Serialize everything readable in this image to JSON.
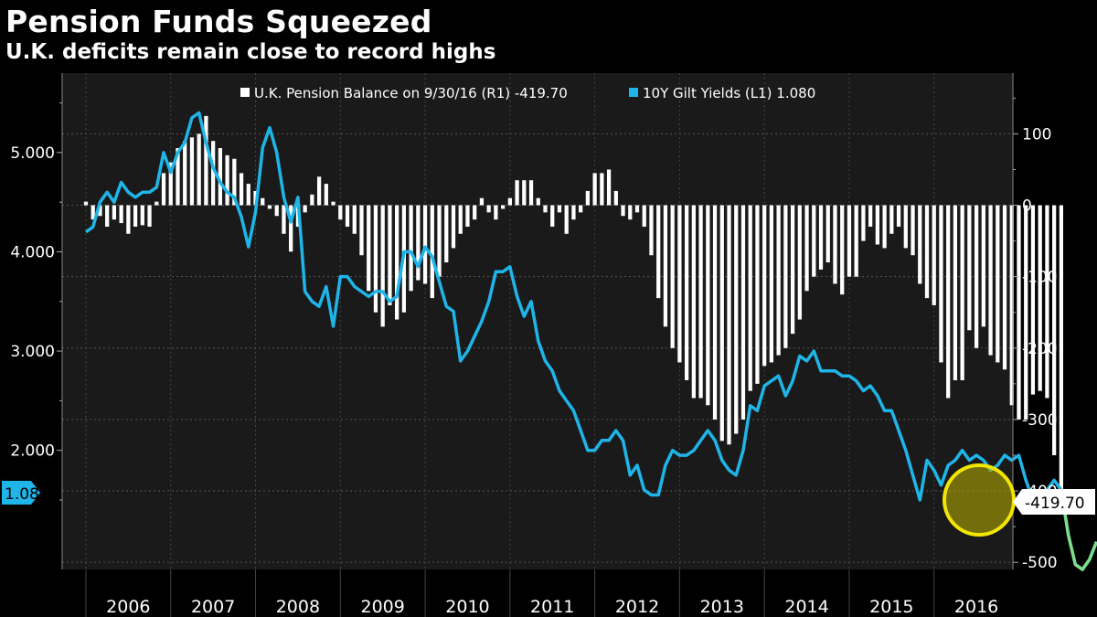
{
  "header": {
    "title": "Pension Funds Squeezed",
    "subtitle": "U.K. deficits remain close to record highs"
  },
  "colors": {
    "background": "#000000",
    "plot_background": "#1a1a1a",
    "bars": "#ffffff",
    "line": "#1fb5e8",
    "highlight": "#f2e600"
  },
  "chart_data": {
    "type": "bar+line",
    "x_tick_labels": [
      "2006",
      "2007",
      "2008",
      "2009",
      "2010",
      "2011",
      "2012",
      "2013",
      "2014",
      "2015",
      "2016"
    ],
    "left_axis": {
      "ylim": [
        0.8,
        5.8
      ],
      "ticks": [
        2.0,
        3.0,
        4.0,
        5.0
      ],
      "tick_labels": [
        "2.000",
        "3.000",
        "4.000",
        "5.000"
      ]
    },
    "right_axis": {
      "ylim": [
        -510,
        185
      ],
      "ticks": [
        100,
        0,
        -100,
        -200,
        -300,
        -400,
        -500
      ],
      "tick_labels": [
        "100",
        "0",
        "-100",
        "-200",
        "-300",
        "-400",
        "-500"
      ]
    },
    "series": [
      {
        "name": "U.K. Pension Balance on 9/30/16 (R1) -419.70",
        "axis": "right",
        "kind": "bar",
        "x_start": 2006.0,
        "step": 0.0833333,
        "values": [
          5,
          -20,
          -15,
          -30,
          -20,
          -25,
          -40,
          -30,
          -28,
          -30,
          5,
          45,
          60,
          80,
          90,
          95,
          100,
          125,
          90,
          80,
          70,
          65,
          45,
          30,
          20,
          10,
          -5,
          -15,
          -40,
          -65,
          -30,
          -10,
          15,
          40,
          30,
          5,
          -20,
          -30,
          -40,
          -70,
          -120,
          -150,
          -170,
          -140,
          -160,
          -150,
          -120,
          -105,
          -110,
          -130,
          -100,
          -80,
          -60,
          -40,
          -30,
          -20,
          10,
          -10,
          -20,
          -5,
          10,
          35,
          35,
          35,
          10,
          -10,
          -30,
          -10,
          -40,
          -20,
          -10,
          20,
          45,
          45,
          50,
          20,
          -15,
          -20,
          -10,
          -30,
          -70,
          -130,
          -170,
          -200,
          -220,
          -245,
          -270,
          -270,
          -280,
          -300,
          -330,
          -335,
          -320,
          -300,
          -260,
          -250,
          -225,
          -220,
          -210,
          -200,
          -180,
          -160,
          -120,
          -100,
          -90,
          -80,
          -110,
          -125,
          -100,
          -100,
          -50,
          -30,
          -55,
          -60,
          -40,
          -30,
          -60,
          -70,
          -110,
          -130,
          -140,
          -220,
          -270,
          -245,
          -245,
          -175,
          -200,
          -170,
          -210,
          -220,
          -230,
          -280,
          -300,
          -300,
          -265,
          -260,
          -270,
          -350,
          -420
        ]
      },
      {
        "name": "10Y Gilt Yields (L1) 1.080",
        "axis": "left",
        "kind": "line",
        "x_start": 2006.0,
        "step": 0.0833333,
        "values": [
          4.2,
          4.25,
          4.5,
          4.6,
          4.5,
          4.7,
          4.6,
          4.55,
          4.6,
          4.6,
          4.65,
          5.0,
          4.8,
          5.0,
          5.1,
          5.35,
          5.4,
          5.1,
          4.85,
          4.7,
          4.6,
          4.55,
          4.35,
          4.05,
          4.4,
          5.05,
          5.25,
          5.0,
          4.55,
          4.3,
          4.55,
          3.6,
          3.5,
          3.45,
          3.65,
          3.25,
          3.75,
          3.75,
          3.65,
          3.6,
          3.55,
          3.6,
          3.6,
          3.5,
          3.55,
          4.0,
          4.0,
          3.85,
          4.05,
          3.95,
          3.7,
          3.45,
          3.4,
          2.9,
          3.0,
          3.15,
          3.3,
          3.5,
          3.8,
          3.8,
          3.85,
          3.55,
          3.35,
          3.5,
          3.1,
          2.9,
          2.8,
          2.6,
          2.5,
          2.4,
          2.2,
          2.0,
          2.0,
          2.1,
          2.1,
          2.2,
          2.1,
          1.75,
          1.85,
          1.6,
          1.55,
          1.55,
          1.85,
          2.0,
          1.95,
          1.95,
          2.0,
          2.1,
          2.2,
          2.1,
          1.9,
          1.8,
          1.75,
          2.0,
          2.45,
          2.4,
          2.65,
          2.7,
          2.75,
          2.55,
          2.7,
          2.95,
          2.9,
          3.0,
          2.8,
          2.8,
          2.8,
          2.75,
          2.75,
          2.7,
          2.6,
          2.65,
          2.55,
          2.4,
          2.4,
          2.2,
          2.0,
          1.75,
          1.5,
          1.9,
          1.8,
          1.65,
          1.85,
          1.9,
          2.0,
          1.9,
          1.95,
          1.9,
          1.8,
          1.85,
          1.95,
          1.9,
          1.95,
          1.7,
          1.5,
          1.55,
          1.6,
          1.7,
          1.6,
          1.15,
          0.85,
          0.8,
          0.9,
          1.08
        ]
      }
    ],
    "last_value_labels": {
      "left": "1.080",
      "right": "-419.70"
    },
    "legend_placement": "top-center",
    "grid": true,
    "annotation": "yellow circle highlighting recent lows (2016)"
  }
}
